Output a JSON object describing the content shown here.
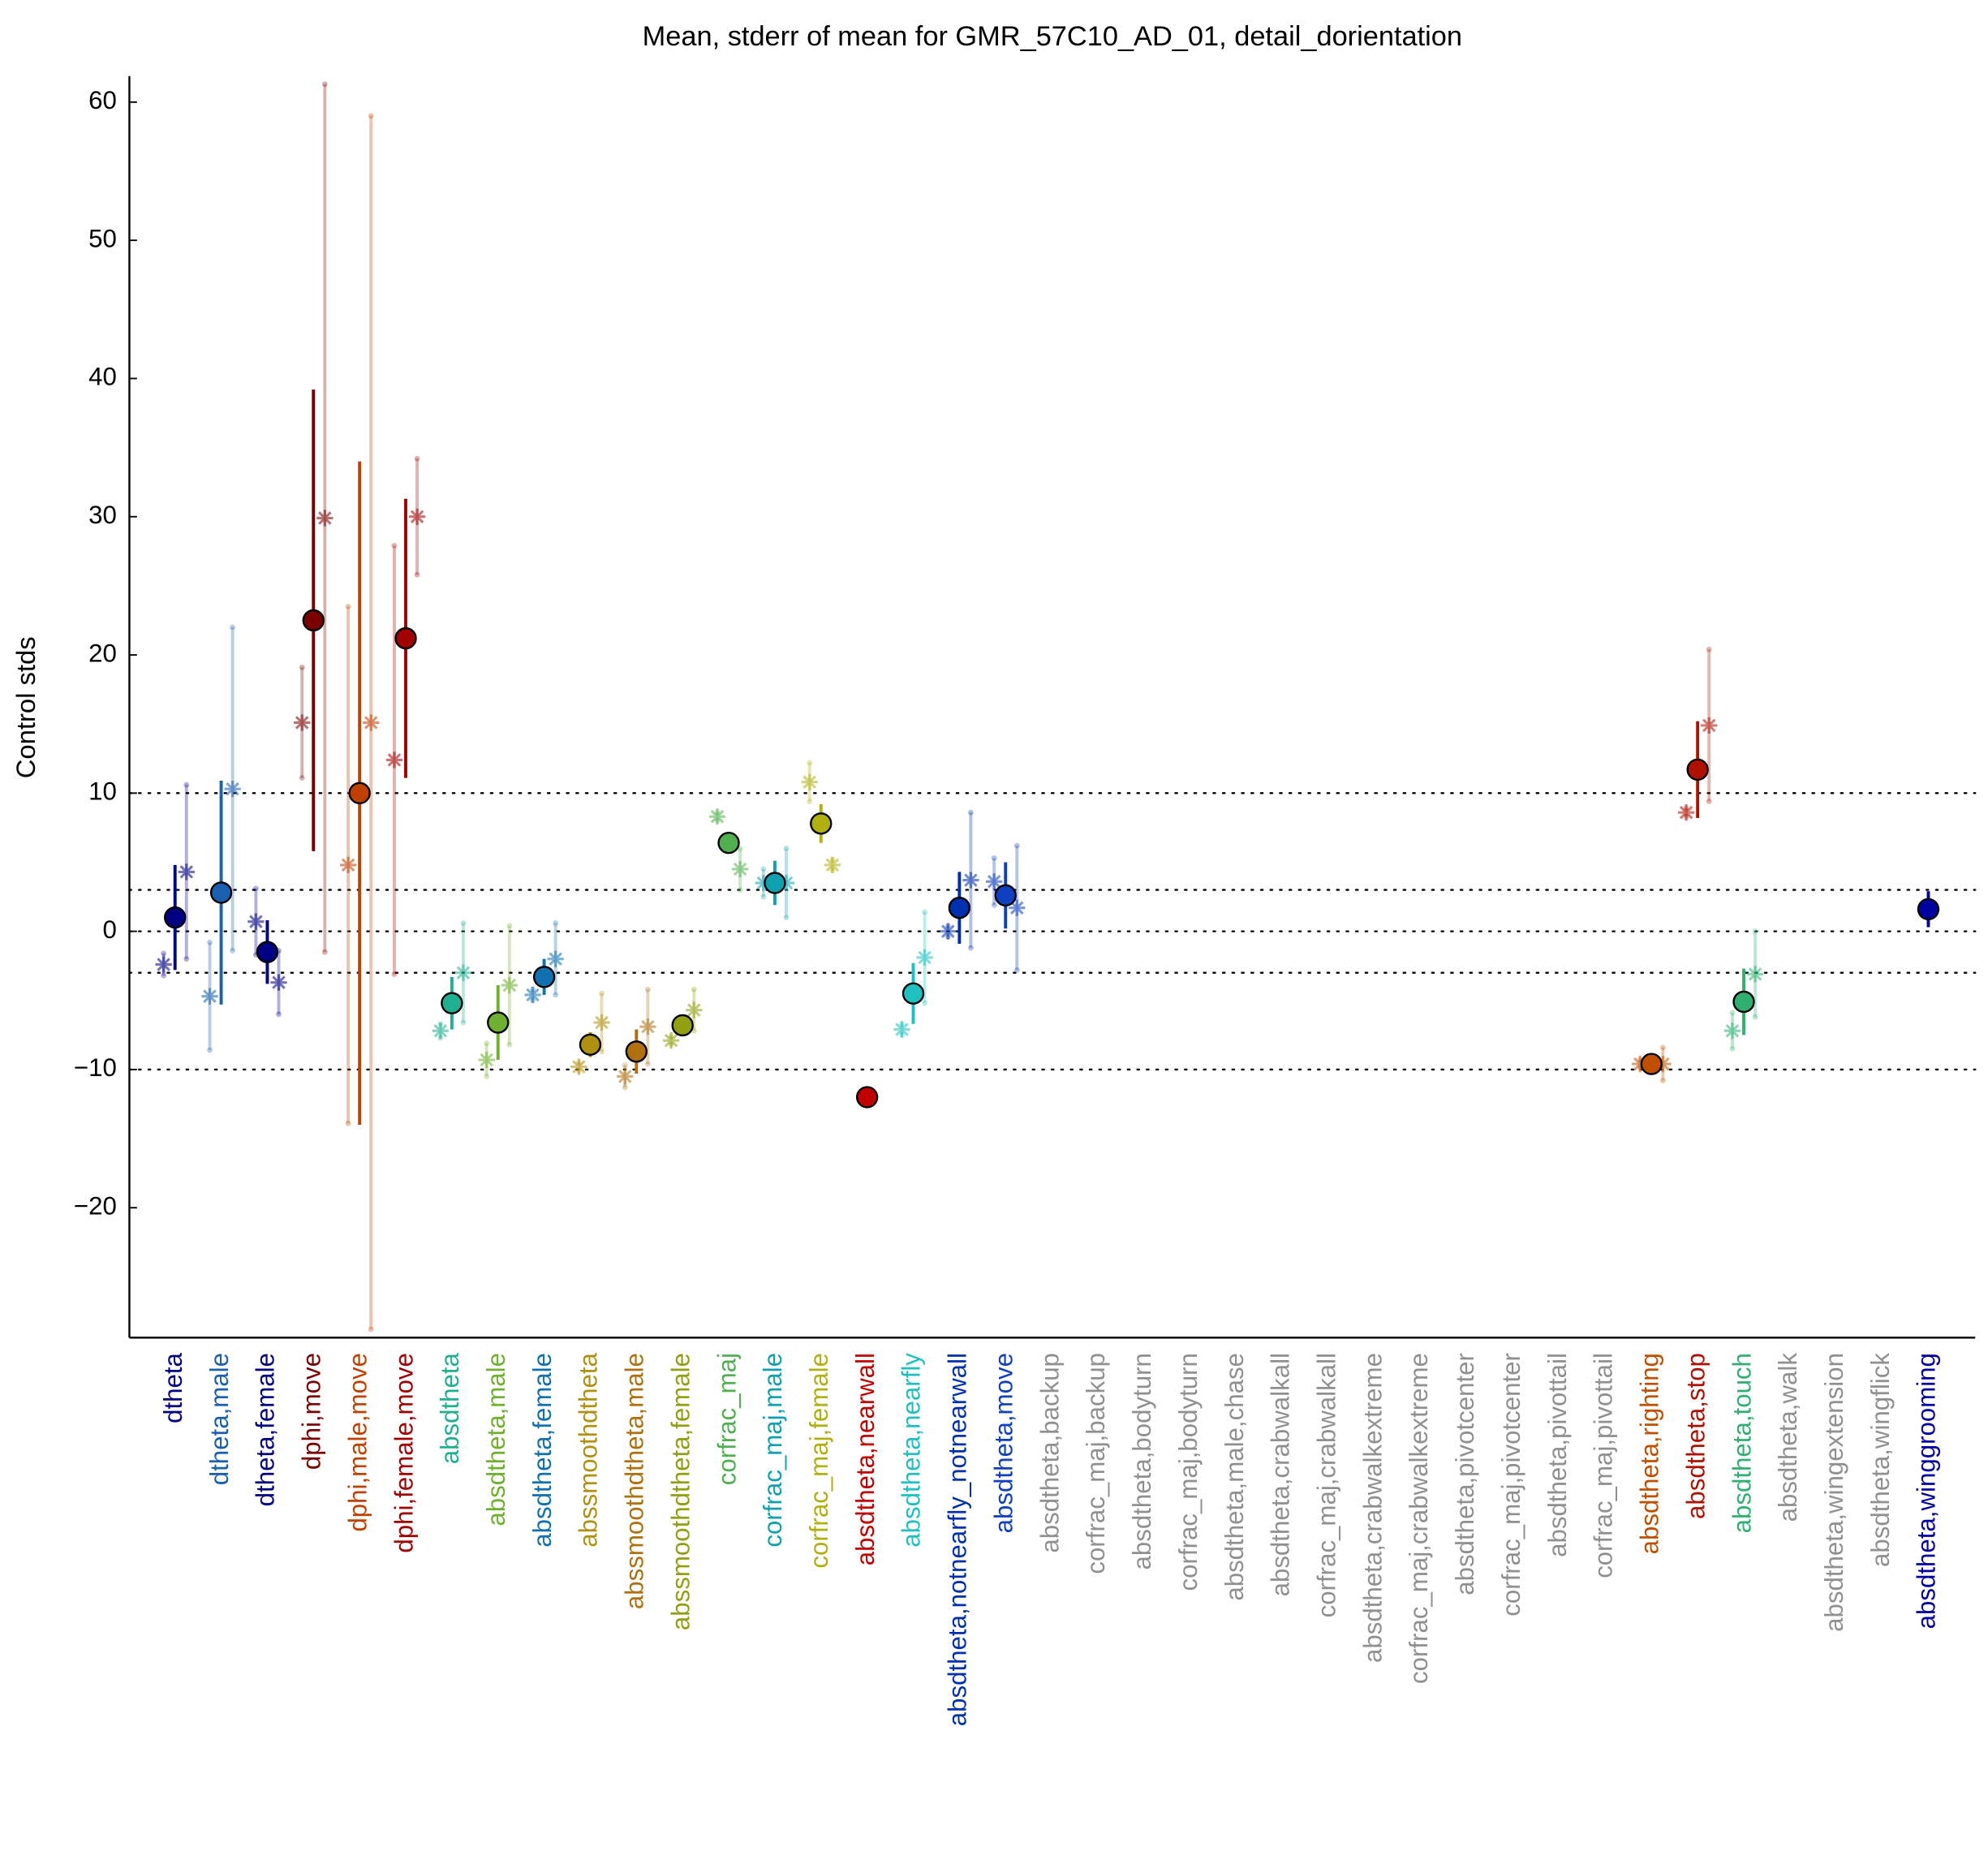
{
  "chart_data": {
    "type": "scatter",
    "title": "Mean, stderr of mean for GMR_57C10_AD_01, detail_dorientation",
    "ylabel": "Control stds",
    "ylim": [
      -29.4,
      62
    ],
    "yticks": [
      {
        "value": -20,
        "label": "−20"
      },
      {
        "value": -10,
        "label": "−10"
      },
      0,
      10,
      20,
      30,
      40,
      50,
      60
    ],
    "hlines": [
      -10,
      -3,
      0,
      3,
      10
    ],
    "categories": [
      "dtheta",
      "dtheta,male",
      "dtheta,female",
      "dphi,move",
      "dphi,male,move",
      "dphi,female,move",
      "absdtheta",
      "absdtheta,male",
      "absdtheta,female",
      "abssmoothdtheta",
      "abssmoothdtheta,male",
      "abssmoothdtheta,female",
      "corfrac_maj",
      "corfrac_maj,male",
      "corfrac_maj,female",
      "absdtheta,nearwall",
      "absdtheta,nearfly",
      "absdtheta,notnearfly_notnearwall",
      "absdtheta,move",
      "absdtheta,backup",
      "corfrac_maj,backup",
      "absdtheta,bodyturn",
      "corfrac_maj,bodyturn",
      "absdtheta,male,chase",
      "absdtheta,crabwalkall",
      "corfrac_maj,crabwalkall",
      "absdtheta,crabwalkextreme",
      "corfrac_maj,crabwalkextreme",
      "absdtheta,pivotcenter",
      "corfrac_maj,pivotcenter",
      "absdtheta,pivottail",
      "corfrac_maj,pivottail",
      "absdtheta,righting",
      "absdtheta,stop",
      "absdtheta,touch",
      "absdtheta,walk",
      "absdtheta,wingextension",
      "absdtheta,wingflick",
      "absdtheta,winggrooming"
    ],
    "colors": [
      "#000080",
      "#1a5fb0",
      "#000080",
      "#7a0000",
      "#c04000",
      "#a00000",
      "#20b090",
      "#70b030",
      "#1070b0",
      "#b09010",
      "#b07010",
      "#90a010",
      "#50b050",
      "#10a0b0",
      "#b0b010",
      "#c00000",
      "#20c0c0",
      "#0030b0",
      "#1040c0",
      "#909090",
      "#909090",
      "#909090",
      "#909090",
      "#909090",
      "#909090",
      "#909090",
      "#909090",
      "#909090",
      "#909090",
      "#909090",
      "#909090",
      "#909090",
      "#c05000",
      "#b01000",
      "#30b070",
      "#909090",
      "#909090",
      "#909090",
      "#0000a0"
    ],
    "values": [
      1.0,
      2.8,
      -1.5,
      22.5,
      10.0,
      21.2,
      -5.2,
      -6.6,
      -3.3,
      -8.2,
      -8.7,
      -6.8,
      6.4,
      3.5,
      7.8,
      -12.0,
      -4.5,
      1.7,
      2.6,
      null,
      null,
      null,
      null,
      null,
      null,
      null,
      null,
      null,
      null,
      null,
      null,
      null,
      -9.6,
      11.7,
      -5.1,
      null,
      null,
      null,
      1.6
    ],
    "errors": [
      3.8,
      8.1,
      2.3,
      16.7,
      24.0,
      10.1,
      1.9,
      2.7,
      1.3,
      0.9,
      1.6,
      0.6,
      0.4,
      1.6,
      1.4,
      0.2,
      2.2,
      2.6,
      2.4,
      null,
      null,
      null,
      null,
      null,
      null,
      null,
      null,
      null,
      null,
      null,
      null,
      null,
      0.3,
      3.5,
      2.4,
      null,
      null,
      null,
      1.3
    ],
    "male_values": [
      -2.4,
      -4.7,
      0.7,
      15.1,
      4.8,
      12.4,
      -7.2,
      -9.3,
      -4.6,
      -9.8,
      -10.5,
      -7.9,
      8.3,
      3.5,
      10.8,
      null,
      -7.1,
      0.0,
      3.6,
      null,
      null,
      null,
      null,
      null,
      null,
      null,
      null,
      null,
      null,
      null,
      null,
      null,
      -9.6,
      8.6,
      -7.2,
      null,
      null,
      null,
      null
    ],
    "male_errors": [
      0.8,
      3.9,
      2.4,
      4.0,
      18.7,
      15.5,
      0.5,
      1.2,
      0.4,
      0.3,
      0.8,
      0.3,
      0.3,
      1.0,
      1.4,
      null,
      0.4,
      0.4,
      1.7,
      null,
      null,
      null,
      null,
      null,
      null,
      null,
      null,
      null,
      null,
      null,
      null,
      null,
      0.3,
      0.3,
      1.3,
      null,
      null,
      null,
      null
    ],
    "female_values": [
      4.3,
      10.3,
      -3.7,
      29.9,
      15.1,
      30.0,
      -3.0,
      -3.9,
      -2.0,
      -6.6,
      -6.9,
      -5.7,
      4.5,
      3.5,
      4.8,
      null,
      -1.9,
      3.7,
      1.7,
      null,
      null,
      null,
      null,
      null,
      null,
      null,
      null,
      null,
      null,
      null,
      null,
      null,
      -9.6,
      14.9,
      -3.1,
      null,
      null,
      null,
      null
    ],
    "female_errors": [
      6.3,
      11.7,
      2.3,
      31.4,
      43.9,
      4.2,
      3.6,
      4.3,
      2.6,
      2.1,
      2.7,
      1.5,
      1.5,
      2.5,
      0.4,
      null,
      3.3,
      4.9,
      4.5,
      null,
      null,
      null,
      null,
      null,
      null,
      null,
      null,
      null,
      null,
      null,
      null,
      null,
      1.2,
      5.5,
      3.1,
      null,
      null,
      null,
      null
    ]
  }
}
